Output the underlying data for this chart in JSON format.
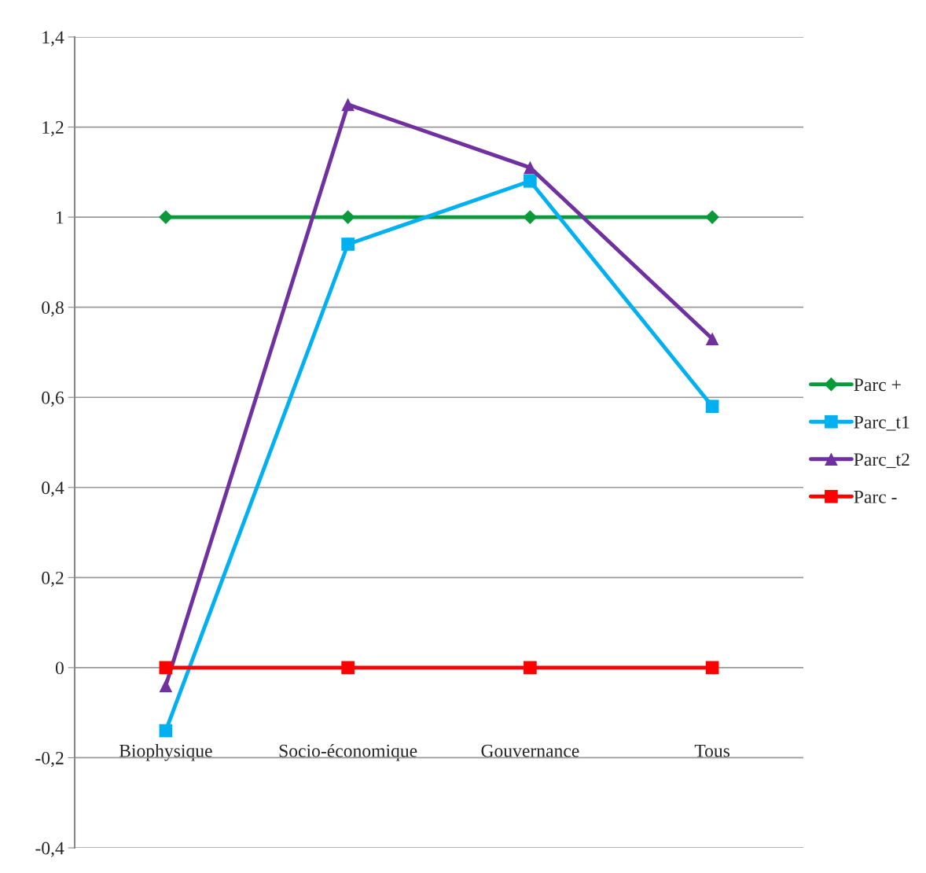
{
  "chart_data": {
    "type": "line",
    "categories": [
      "Biophysique",
      "Socio-économique",
      "Gouvernance",
      "Tous"
    ],
    "series": [
      {
        "name": "Parc +",
        "color": "#0a9a3a",
        "marker": "diamond",
        "values": [
          1,
          1,
          1,
          1
        ]
      },
      {
        "name": "Parc_t1",
        "color": "#00b0f0",
        "marker": "square",
        "values": [
          -0.14,
          0.94,
          1.08,
          0.58
        ]
      },
      {
        "name": "Parc_t2",
        "color": "#7030a0",
        "marker": "triangle",
        "values": [
          -0.04,
          1.25,
          1.11,
          0.73
        ]
      },
      {
        "name": "Parc -",
        "color": "#ff0000",
        "marker": "square",
        "values": [
          0,
          0,
          0,
          0
        ]
      }
    ],
    "ylim": [
      -0.4,
      1.4
    ],
    "yticks": [
      {
        "value": -0.4,
        "label": "-0,4"
      },
      {
        "value": -0.2,
        "label": "-0,2"
      },
      0,
      {
        "value": 0.2,
        "label": "0,2"
      },
      {
        "value": 0.4,
        "label": "0,4"
      },
      {
        "value": 0.6,
        "label": "0,6"
      },
      {
        "value": 0.8,
        "label": "0,8"
      },
      1,
      {
        "value": 1.2,
        "label": "1,2"
      },
      {
        "value": 1.4,
        "label": "1,4"
      }
    ],
    "grid": "y",
    "legend": "right",
    "line_style": "solid"
  }
}
